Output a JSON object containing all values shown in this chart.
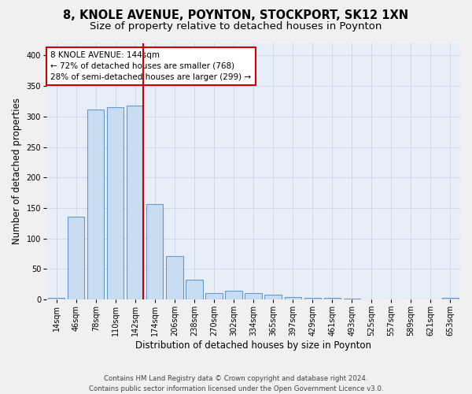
{
  "title1": "8, KNOLE AVENUE, POYNTON, STOCKPORT, SK12 1XN",
  "title2": "Size of property relative to detached houses in Poynton",
  "xlabel": "Distribution of detached houses by size in Poynton",
  "ylabel": "Number of detached properties",
  "categories": [
    "14sqm",
    "46sqm",
    "78sqm",
    "110sqm",
    "142sqm",
    "174sqm",
    "206sqm",
    "238sqm",
    "270sqm",
    "302sqm",
    "334sqm",
    "365sqm",
    "397sqm",
    "429sqm",
    "461sqm",
    "493sqm",
    "525sqm",
    "557sqm",
    "589sqm",
    "621sqm",
    "653sqm"
  ],
  "values": [
    3,
    136,
    312,
    315,
    318,
    157,
    71,
    32,
    10,
    14,
    10,
    8,
    4,
    3,
    2,
    1,
    0,
    0,
    0,
    0,
    2
  ],
  "bar_color": "#c9ddf2",
  "bar_edge_color": "#6699cc",
  "vline_x_index": 4,
  "vline_color": "#cc0000",
  "annotation_line1": "8 KNOLE AVENUE: 144sqm",
  "annotation_line2": "← 72% of detached houses are smaller (768)",
  "annotation_line3": "28% of semi-detached houses are larger (299) →",
  "annotation_box_color": "#cc0000",
  "ylim": [
    0,
    420
  ],
  "yticks": [
    0,
    50,
    100,
    150,
    200,
    250,
    300,
    350,
    400
  ],
  "background_color": "#e8eef8",
  "grid_color": "#d0d8e8",
  "fig_bg_color": "#f0f0f0",
  "footer1": "Contains HM Land Registry data © Crown copyright and database right 2024.",
  "footer2": "Contains public sector information licensed under the Open Government Licence v3.0.",
  "title1_fontsize": 10.5,
  "title2_fontsize": 9.5,
  "tick_fontsize": 7,
  "ylabel_fontsize": 8.5,
  "xlabel_fontsize": 8.5,
  "annotation_fontsize": 7.5,
  "footer_fontsize": 6.2
}
